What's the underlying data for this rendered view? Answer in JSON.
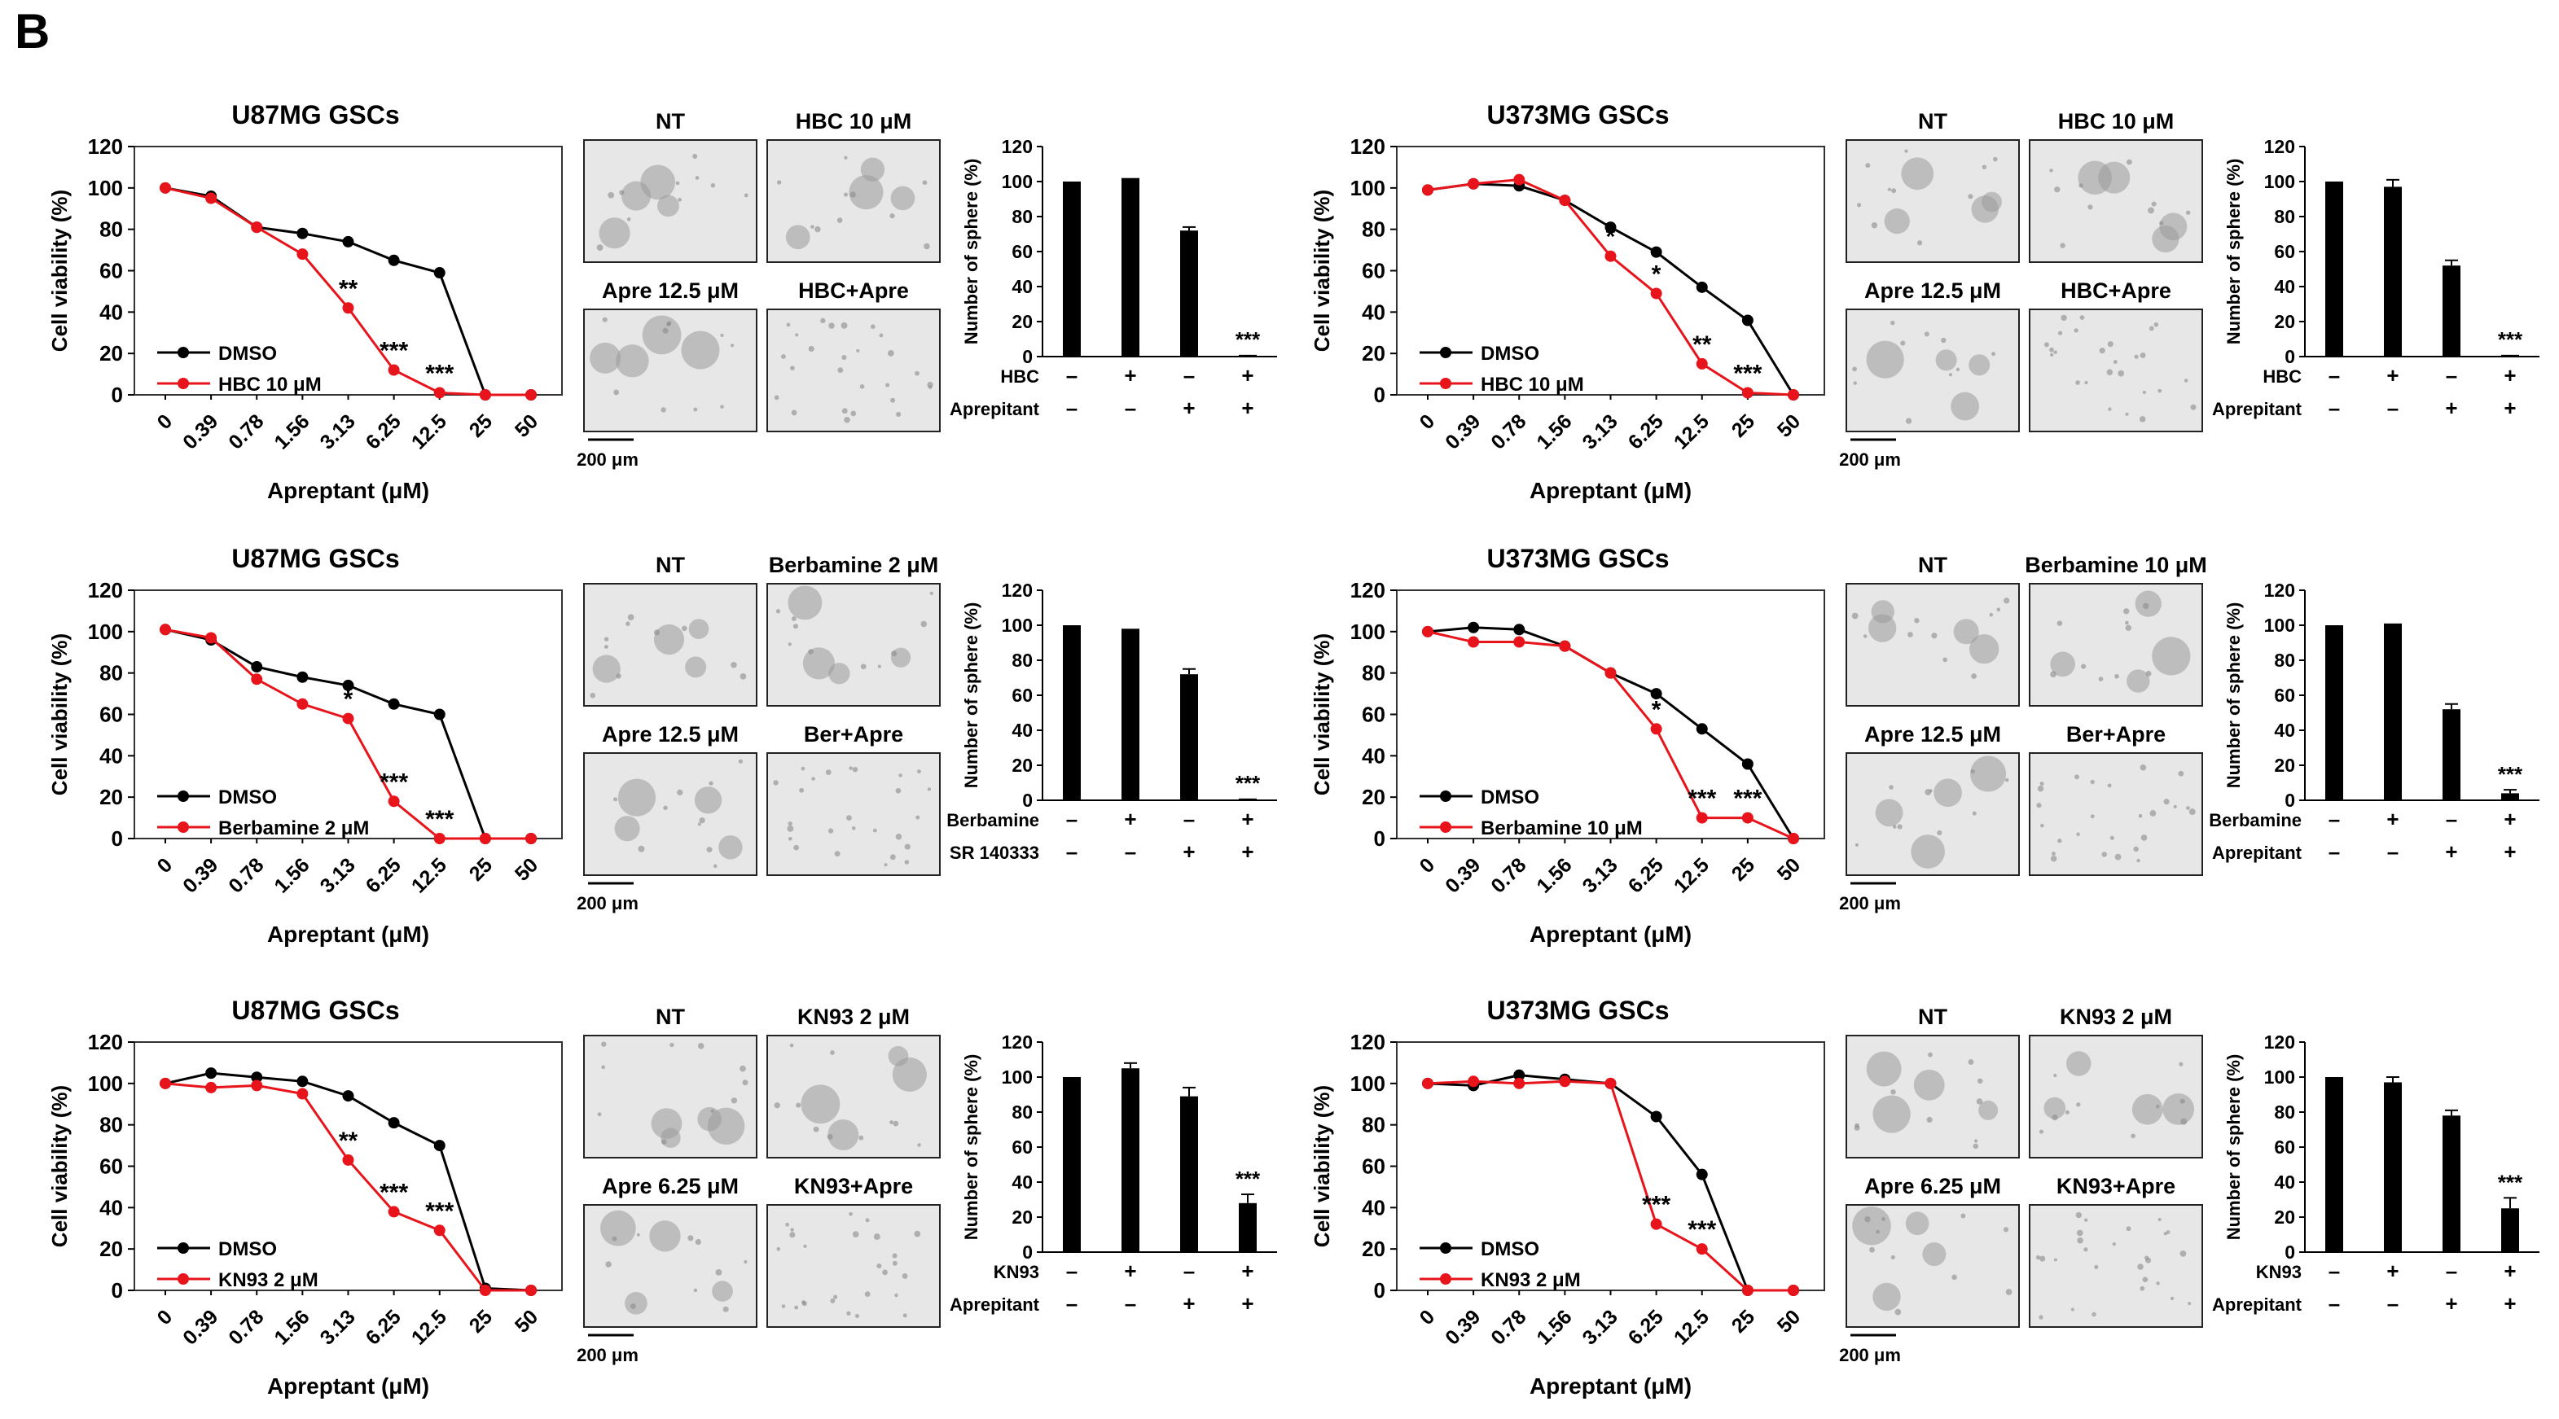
{
  "figure": {
    "panel_label": "B"
  },
  "x_categories": [
    "0",
    "0.39",
    "0.78",
    "1.56",
    "3.13",
    "6.25",
    "12.5",
    "25",
    "50"
  ],
  "sphere_ylim": [
    0,
    120
  ],
  "sphere_yticks": [
    "0",
    "20",
    "40",
    "60",
    "80",
    "100",
    "120"
  ],
  "viability_yticks": [
    "0",
    "20",
    "40",
    "60",
    "80",
    "100",
    "120"
  ],
  "scale_bar_label": "200 μm",
  "colors": {
    "dmso": "#000000",
    "treatment": "#e8141b",
    "bar": "#000000",
    "frame": "#333333"
  },
  "panels": [
    {
      "chart_data": {
        "type": "line",
        "title": "U87MG GSCs",
        "xlabel": "Apreptant (μM)",
        "ylabel": "Cell viability (%)",
        "ylim": [
          0,
          120
        ],
        "series": [
          {
            "name": "DMSO",
            "values": [
              100,
              96,
              81,
              78,
              74,
              65,
              59,
              0,
              0
            ]
          },
          {
            "name": "HBC 10 μM",
            "values": [
              100,
              95,
              81,
              68,
              42,
              12,
              1,
              0,
              0
            ]
          }
        ],
        "annotations": [
          {
            "index": 4,
            "text": "**"
          },
          {
            "index": 5,
            "text": "***"
          },
          {
            "index": 6,
            "text": "***"
          }
        ]
      },
      "images": {
        "top_left": "NT",
        "top_right": "HBC 10 μM",
        "bottom_left": "Apre 12.5 μM",
        "bottom_right": "HBC+Apre"
      },
      "bar_chart": {
        "type": "bar",
        "ylabel": "Number of sphere (%)",
        "values": [
          100,
          102,
          72,
          1
        ],
        "errors": [
          0,
          0,
          2,
          0
        ],
        "annotation": "***",
        "rows": [
          {
            "label": "HBC",
            "signs": [
              "–",
              "+",
              "–",
              "+"
            ]
          },
          {
            "label": "Aprepitant",
            "signs": [
              "–",
              "–",
              "+",
              "+"
            ]
          }
        ]
      }
    },
    {
      "chart_data": {
        "type": "line",
        "title": "U373MG GSCs",
        "xlabel": "Apreptant (μM)",
        "ylabel": "Cell viability (%)",
        "ylim": [
          0,
          120
        ],
        "series": [
          {
            "name": "DMSO",
            "values": [
              99,
              102,
              101,
              94,
              81,
              69,
              52,
              36,
              0
            ]
          },
          {
            "name": "HBC 10 μM",
            "values": [
              99,
              102,
              104,
              94,
              67,
              49,
              15,
              1,
              0
            ]
          }
        ],
        "annotations": [
          {
            "index": 4,
            "text": "*"
          },
          {
            "index": 5,
            "text": "*"
          },
          {
            "index": 6,
            "text": "**"
          },
          {
            "index": 7,
            "text": "***"
          }
        ]
      },
      "images": {
        "top_left": "NT",
        "top_right": "HBC 10 μM",
        "bottom_left": "Apre 12.5 μM",
        "bottom_right": "HBC+Apre"
      },
      "bar_chart": {
        "type": "bar",
        "ylabel": "Number of sphere (%)",
        "values": [
          100,
          97,
          52,
          1
        ],
        "errors": [
          0,
          4,
          3,
          0
        ],
        "annotation": "***",
        "rows": [
          {
            "label": "HBC",
            "signs": [
              "–",
              "+",
              "–",
              "+"
            ]
          },
          {
            "label": "Aprepitant",
            "signs": [
              "–",
              "–",
              "+",
              "+"
            ]
          }
        ]
      }
    },
    {
      "chart_data": {
        "type": "line",
        "title": "U87MG GSCs",
        "xlabel": "Apreptant (μM)",
        "ylabel": "Cell viability (%)",
        "ylim": [
          0,
          120
        ],
        "series": [
          {
            "name": "DMSO",
            "values": [
              101,
              96,
              83,
              78,
              74,
              65,
              60,
              0,
              0
            ]
          },
          {
            "name": "Berbamine 2 μM",
            "values": [
              101,
              97,
              77,
              65,
              58,
              18,
              0,
              0,
              0
            ]
          }
        ],
        "annotations": [
          {
            "index": 4,
            "text": "*"
          },
          {
            "index": 5,
            "text": "***"
          },
          {
            "index": 6,
            "text": "***"
          }
        ]
      },
      "images": {
        "top_left": "NT",
        "top_right": "Berbamine 2 μM",
        "bottom_left": "Apre 12.5 μM",
        "bottom_right": "Ber+Apre"
      },
      "bar_chart": {
        "type": "bar",
        "ylabel": "Number of sphere (%)",
        "values": [
          100,
          98,
          72,
          1
        ],
        "errors": [
          0,
          0,
          3,
          0
        ],
        "annotation": "***",
        "rows": [
          {
            "label": "Berbamine",
            "signs": [
              "–",
              "+",
              "–",
              "+"
            ]
          },
          {
            "label": "SR 140333",
            "signs": [
              "–",
              "–",
              "+",
              "+"
            ]
          }
        ]
      }
    },
    {
      "chart_data": {
        "type": "line",
        "title": "U373MG GSCs",
        "xlabel": "Apreptant (μM)",
        "ylabel": "Cell viability (%)",
        "ylim": [
          0,
          120
        ],
        "series": [
          {
            "name": "DMSO",
            "values": [
              100,
              102,
              101,
              93,
              80,
              70,
              53,
              36,
              0
            ]
          },
          {
            "name": "Berbamine 10 μM",
            "values": [
              100,
              95,
              95,
              93,
              80,
              53,
              10,
              10,
              0
            ]
          }
        ],
        "annotations": [
          {
            "index": 5,
            "text": "*"
          },
          {
            "index": 6,
            "text": "***"
          },
          {
            "index": 7,
            "text": "***"
          }
        ]
      },
      "images": {
        "top_left": "NT",
        "top_right": "Berbamine 10 μM",
        "bottom_left": "Apre 12.5 μM",
        "bottom_right": "Ber+Apre"
      },
      "bar_chart": {
        "type": "bar",
        "ylabel": "Number of sphere (%)",
        "values": [
          100,
          101,
          52,
          4
        ],
        "errors": [
          0,
          0,
          3,
          2
        ],
        "annotation": "***",
        "rows": [
          {
            "label": "Berbamine",
            "signs": [
              "–",
              "+",
              "–",
              "+"
            ]
          },
          {
            "label": "Aprepitant",
            "signs": [
              "–",
              "–",
              "+",
              "+"
            ]
          }
        ]
      }
    },
    {
      "chart_data": {
        "type": "line",
        "title": "U87MG GSCs",
        "xlabel": "Apreptant (μM)",
        "ylabel": "Cell viability (%)",
        "ylim": [
          0,
          120
        ],
        "series": [
          {
            "name": "DMSO",
            "values": [
              100,
              105,
              103,
              101,
              94,
              81,
              70,
              1,
              0
            ]
          },
          {
            "name": "KN93 2 μM",
            "values": [
              100,
              98,
              99,
              95,
              63,
              38,
              29,
              0,
              0
            ]
          }
        ],
        "annotations": [
          {
            "index": 4,
            "text": "**"
          },
          {
            "index": 5,
            "text": "***"
          },
          {
            "index": 6,
            "text": "***"
          }
        ]
      },
      "images": {
        "top_left": "NT",
        "top_right": "KN93 2 μM",
        "bottom_left": "Apre 6.25 μM",
        "bottom_right": "KN93+Apre"
      },
      "bar_chart": {
        "type": "bar",
        "ylabel": "Number of sphere (%)",
        "values": [
          100,
          105,
          89,
          28
        ],
        "errors": [
          0,
          3,
          5,
          5
        ],
        "annotation": "***",
        "rows": [
          {
            "label": "KN93",
            "signs": [
              "–",
              "+",
              "–",
              "+"
            ]
          },
          {
            "label": "Aprepitant",
            "signs": [
              "–",
              "–",
              "+",
              "+"
            ]
          }
        ]
      }
    },
    {
      "chart_data": {
        "type": "line",
        "title": "U373MG GSCs",
        "xlabel": "Apreptant (μM)",
        "ylabel": "Cell viability (%)",
        "ylim": [
          0,
          120
        ],
        "series": [
          {
            "name": "DMSO",
            "values": [
              100,
              99,
              104,
              102,
              100,
              84,
              56,
              0,
              0
            ]
          },
          {
            "name": "KN93 2 μM",
            "values": [
              100,
              101,
              100,
              101,
              100,
              32,
              20,
              0,
              0
            ]
          }
        ],
        "annotations": [
          {
            "index": 5,
            "text": "***"
          },
          {
            "index": 6,
            "text": "***"
          }
        ]
      },
      "images": {
        "top_left": "NT",
        "top_right": "KN93 2 μM",
        "bottom_left": "Apre 6.25 μM",
        "bottom_right": "KN93+Apre"
      },
      "bar_chart": {
        "type": "bar",
        "ylabel": "Number of sphere (%)",
        "values": [
          100,
          97,
          78,
          25
        ],
        "errors": [
          0,
          3,
          3,
          6
        ],
        "annotation": "***",
        "rows": [
          {
            "label": "KN93",
            "signs": [
              "–",
              "+",
              "–",
              "+"
            ]
          },
          {
            "label": "Aprepitant",
            "signs": [
              "–",
              "–",
              "+",
              "+"
            ]
          }
        ]
      }
    }
  ]
}
